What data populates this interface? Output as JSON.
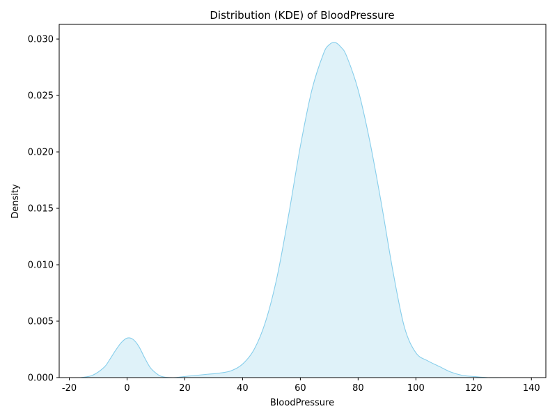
{
  "chart_data": {
    "type": "area",
    "title": "Distribution (KDE) of BloodPressure",
    "xlabel": "BloodPressure",
    "ylabel": "Density",
    "xlim": [
      -23.5,
      145
    ],
    "ylim": [
      0,
      0.0313
    ],
    "xticks": [
      "-20",
      "0",
      "20",
      "40",
      "60",
      "80",
      "100",
      "120",
      "140"
    ],
    "xtick_values": [
      -20,
      0,
      20,
      40,
      60,
      80,
      100,
      120,
      140
    ],
    "yticks": [
      "0.000",
      "0.005",
      "0.010",
      "0.015",
      "0.020",
      "0.025",
      "0.030"
    ],
    "ytick_values": [
      0,
      0.005,
      0.01,
      0.015,
      0.02,
      0.025,
      0.03
    ],
    "grid": false,
    "legend": "none",
    "colors": {
      "line": "#87ceeb",
      "fill": "#dff2f9"
    },
    "series": [
      {
        "x": [
          -16,
          -12,
          -8,
          -6,
          -4,
          -2,
          0,
          2,
          4,
          6,
          8,
          10,
          12,
          16,
          20,
          24,
          28,
          32,
          36,
          40,
          44,
          48,
          52,
          56,
          60,
          64,
          68,
          70,
          72,
          74,
          76,
          80,
          84,
          88,
          92,
          96,
          100,
          104,
          108,
          112,
          116,
          120,
          125,
          130,
          137
        ],
        "y": [
          0.0,
          0.0002,
          0.0009,
          0.0016,
          0.0024,
          0.0031,
          0.0035,
          0.0034,
          0.0028,
          0.0018,
          0.0009,
          0.0004,
          0.0001,
          0.0,
          0.0001,
          0.0002,
          0.0003,
          0.0004,
          0.0006,
          0.0012,
          0.0025,
          0.005,
          0.009,
          0.0145,
          0.0205,
          0.0255,
          0.0287,
          0.0295,
          0.0297,
          0.0293,
          0.0285,
          0.0255,
          0.021,
          0.0155,
          0.0095,
          0.0045,
          0.0022,
          0.0015,
          0.001,
          0.0005,
          0.0002,
          0.0001,
          0.0,
          0.0,
          0.0
        ]
      }
    ]
  }
}
